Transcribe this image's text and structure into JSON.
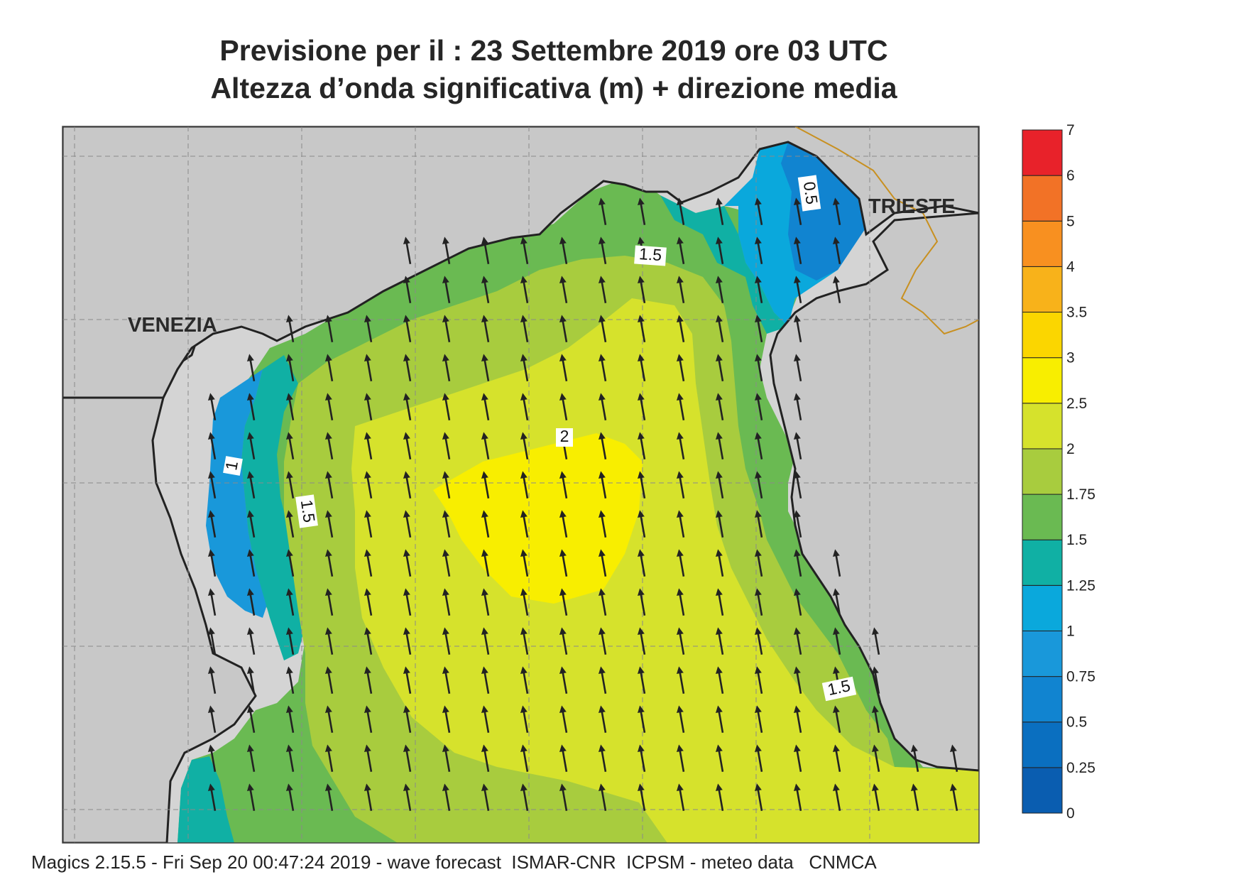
{
  "header": {
    "line1": "Previsione per il  :  23 Settembre 2019   ore 03 UTC",
    "line2": "Altezza d’onda significativa (m) + direzione media"
  },
  "footer": "Magics 2.15.5 - Fri Sep 20 00:47:24 2019 - wave forecast  ISMAR-CNR  ICPSM - meteo data   CNMCA",
  "cities": {
    "venezia": "VENEZIA",
    "trieste": "TRIESTE"
  },
  "colorbar": [
    {
      "label": "0",
      "color": "#0a5db0"
    },
    {
      "label": "0.25",
      "color": "#0a6fc0"
    },
    {
      "label": "0.5",
      "color": "#1184d0"
    },
    {
      "label": "0.75",
      "color": "#1998da"
    },
    {
      "label": "1",
      "color": "#0aa8dc"
    },
    {
      "label": "1.25",
      "color": "#10b0a4"
    },
    {
      "label": "1.5",
      "color": "#6aba52"
    },
    {
      "label": "1.75",
      "color": "#a8cc3e"
    },
    {
      "label": "2",
      "color": "#d6e22c"
    },
    {
      "label": "2.5",
      "color": "#f8ee00"
    },
    {
      "label": "3",
      "color": "#fbd600"
    },
    {
      "label": "3.5",
      "color": "#f8b21a"
    },
    {
      "label": "4",
      "color": "#f89020"
    },
    {
      "label": "5",
      "color": "#f27226"
    },
    {
      "label": "6",
      "color": "#e8222a"
    },
    {
      "label": "7",
      "color": "#ea1562"
    }
  ],
  "contour_labels": [
    "0.5",
    "1.5",
    "1",
    "1.5",
    "2",
    "1.5"
  ],
  "mean_wave_direction": "NNW"
}
